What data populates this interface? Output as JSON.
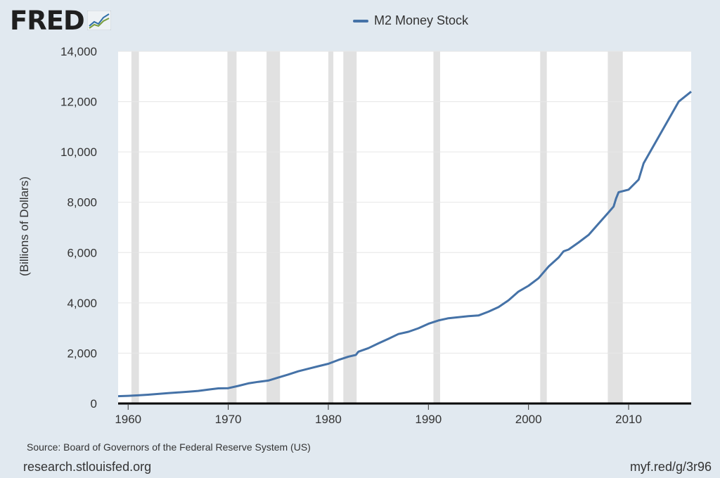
{
  "branding": {
    "logo_text": "FRED",
    "logo_icon": "fred-graph-icon",
    "accent": "#4572a7"
  },
  "legend": {
    "label": "M2 Money Stock",
    "color": "#4572a7"
  },
  "footer": {
    "source": "Source: Board of Governors of the Federal Reserve System (US)",
    "site": "research.stlouisfed.org",
    "short_link": "myf.red/g/3r96"
  },
  "chart_data": {
    "type": "line",
    "title": "",
    "xlabel": "",
    "ylabel": "(Billions of Dollars)",
    "xlim": [
      1959,
      2016.25
    ],
    "ylim": [
      0,
      14000
    ],
    "x_ticks": [
      1960,
      1970,
      1980,
      1990,
      2000,
      2010
    ],
    "x_tick_labels": [
      "1960",
      "1970",
      "1980",
      "1990",
      "2000",
      "2010"
    ],
    "y_ticks": [
      0,
      2000,
      4000,
      6000,
      8000,
      10000,
      12000,
      14000
    ],
    "y_tick_labels": [
      "0",
      "2,000",
      "4,000",
      "6,000",
      "8,000",
      "10,000",
      "12,000",
      "14,000"
    ],
    "grid": "horizontal",
    "background": "#ffffff",
    "recession_color": "#e1e1e1",
    "recessions": [
      [
        1960.33,
        1961.08
      ],
      [
        1969.92,
        1970.83
      ],
      [
        1973.83,
        1975.17
      ],
      [
        1980.0,
        1980.5
      ],
      [
        1981.5,
        1982.83
      ],
      [
        1990.5,
        1991.17
      ],
      [
        2001.17,
        2001.83
      ],
      [
        2007.92,
        2009.42
      ]
    ],
    "series": [
      {
        "name": "M2 Money Stock",
        "color": "#4572a7",
        "x": [
          1959,
          1960,
          1961,
          1962,
          1963,
          1964,
          1965,
          1966,
          1967,
          1968,
          1969,
          1970,
          1971,
          1972,
          1973,
          1974,
          1975,
          1976,
          1977,
          1978,
          1979,
          1980,
          1981,
          1982,
          1982.75,
          1983,
          1984,
          1985,
          1986,
          1987,
          1988,
          1989,
          1990,
          1991,
          1992,
          1993,
          1994,
          1995,
          1996,
          1997,
          1998,
          1999,
          2000,
          2001,
          2002,
          2003,
          2003.5,
          2004,
          2005,
          2006,
          2007,
          2008,
          2008.5,
          2008.75,
          2009,
          2010,
          2011,
          2011.5,
          2012,
          2013,
          2014,
          2015,
          2016.25
        ],
        "values": [
          290,
          305,
          325,
          350,
          380,
          410,
          440,
          470,
          500,
          550,
          600,
          610,
          700,
          800,
          860,
          910,
          1030,
          1150,
          1280,
          1380,
          1480,
          1580,
          1730,
          1860,
          1930,
          2060,
          2200,
          2390,
          2570,
          2760,
          2850,
          2990,
          3170,
          3300,
          3390,
          3430,
          3470,
          3500,
          3650,
          3830,
          4100,
          4450,
          4680,
          4980,
          5440,
          5800,
          6050,
          6120,
          6400,
          6700,
          7150,
          7600,
          7830,
          8150,
          8400,
          8500,
          8900,
          9550,
          9900,
          10600,
          11300,
          12000,
          12400
        ]
      }
    ]
  }
}
